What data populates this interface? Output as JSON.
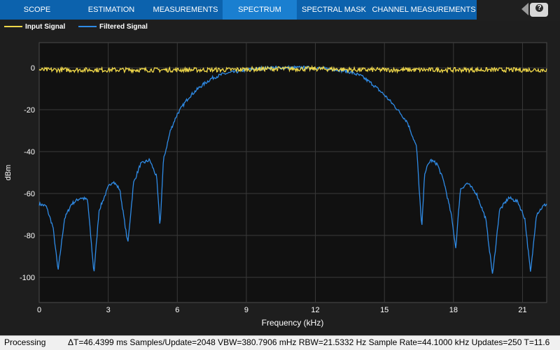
{
  "tabs": [
    {
      "label": "SCOPE",
      "active": false
    },
    {
      "label": "ESTIMATION",
      "active": false
    },
    {
      "label": "MEASUREMENTS",
      "active": false
    },
    {
      "label": "SPECTRUM",
      "active": true
    },
    {
      "label": "SPECTRAL MASK",
      "active": false
    },
    {
      "label": "CHANNEL MEASUREMENTS",
      "active": false
    }
  ],
  "help_label": "?",
  "legend": [
    {
      "label": "Input Signal",
      "color": "#f0d84a"
    },
    {
      "label": "Filtered Signal",
      "color": "#2f8be6"
    }
  ],
  "status": {
    "left": "Processing",
    "right": "ΔT=46.4399 ms  Samples/Update=2048  VBW=380.7906 mHz  RBW=21.5332 Hz  Sample Rate=44.1000 kHz  Updates=250  T=11.6"
  },
  "chart_data": {
    "type": "line",
    "xlabel": "Frequency (kHz)",
    "ylabel": "dBm",
    "xlim": [
      0,
      22.05
    ],
    "ylim": [
      -112,
      12
    ],
    "xticks": [
      0,
      3,
      6,
      9,
      12,
      15,
      18,
      21
    ],
    "yticks": [
      0,
      -20,
      -40,
      -60,
      -80,
      -100
    ],
    "grid": true,
    "series": [
      {
        "name": "Input Signal",
        "color": "#f0d84a",
        "x": [
          0,
          2,
          4,
          6,
          8,
          10,
          12,
          14,
          16,
          18,
          20,
          22.05
        ],
        "y": [
          -1,
          -1,
          -1,
          -1,
          -1,
          -0.5,
          -0.5,
          -1,
          -1,
          -1,
          -1,
          -1
        ]
      },
      {
        "name": "Filtered Signal",
        "color": "#2f8be6",
        "x": [
          0,
          0.3,
          0.6,
          0.82,
          1.1,
          1.4,
          1.8,
          2.1,
          2.38,
          2.6,
          3.0,
          3.2,
          3.5,
          3.85,
          4.1,
          4.4,
          4.8,
          5.1,
          5.25,
          5.4,
          5.7,
          6.0,
          6.5,
          7.0,
          7.5,
          8.0,
          8.5,
          9.0,
          9.5,
          10.0,
          11.0,
          12.0,
          13.0,
          13.5,
          14.0,
          14.5,
          15.0,
          15.5,
          16.0,
          16.4,
          16.62,
          16.75,
          17.0,
          17.3,
          17.6,
          17.9,
          18.1,
          18.3,
          18.6,
          19.0,
          19.4,
          19.7,
          20.0,
          20.4,
          20.8,
          21.1,
          21.35,
          21.6,
          21.9,
          22.05
        ],
        "y": [
          -65,
          -66,
          -76,
          -97,
          -72,
          -65,
          -62,
          -63,
          -98,
          -68,
          -57,
          -54,
          -58,
          -84,
          -55,
          -46,
          -44,
          -52,
          -76,
          -44,
          -30,
          -22,
          -14,
          -9,
          -5,
          -3,
          -2,
          -1,
          -0.5,
          0,
          0,
          0,
          -1,
          -2,
          -4,
          -8,
          -13,
          -19,
          -26,
          -38,
          -77,
          -50,
          -44,
          -46,
          -55,
          -70,
          -86,
          -58,
          -55,
          -60,
          -72,
          -99,
          -68,
          -62,
          -64,
          -72,
          -98,
          -70,
          -66,
          -65
        ]
      }
    ]
  }
}
